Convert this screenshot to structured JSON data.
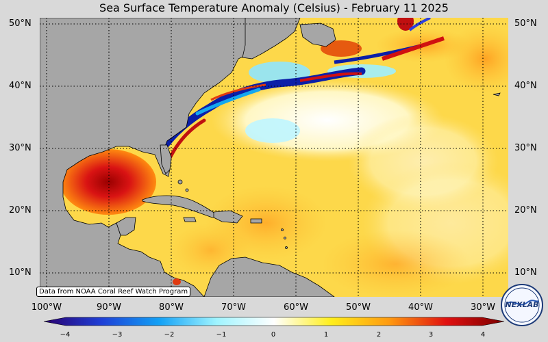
{
  "title": "Sea Surface Temperature Anomaly (Celsius) - February 11 2025",
  "credit": "Data from NOAA Coral Reef Watch Program",
  "lat_labels": [
    "50°N",
    "40°N",
    "30°N",
    "20°N",
    "10°N"
  ],
  "lon_labels": [
    "100°W",
    "90°W",
    "80°W",
    "70°W",
    "60°W",
    "50°W",
    "40°W",
    "30°W"
  ],
  "colorbar": {
    "ticks": [
      "−4",
      "−3",
      "−2",
      "−1",
      "0",
      "1",
      "2",
      "3",
      "4"
    ],
    "range": [
      -4,
      4
    ],
    "colors": [
      "#2a006e",
      "#1f3fd6",
      "#12a0f5",
      "#9ff4ff",
      "#ffffff",
      "#ffee1a",
      "#ff9a10",
      "#e01010",
      "#7a0000"
    ]
  },
  "logo": {
    "text": "NEXLAB"
  },
  "colors": {
    "land": "#a6a6a6",
    "background": "#d9d9d9",
    "neutral_ocean": "#fdd84a"
  }
}
